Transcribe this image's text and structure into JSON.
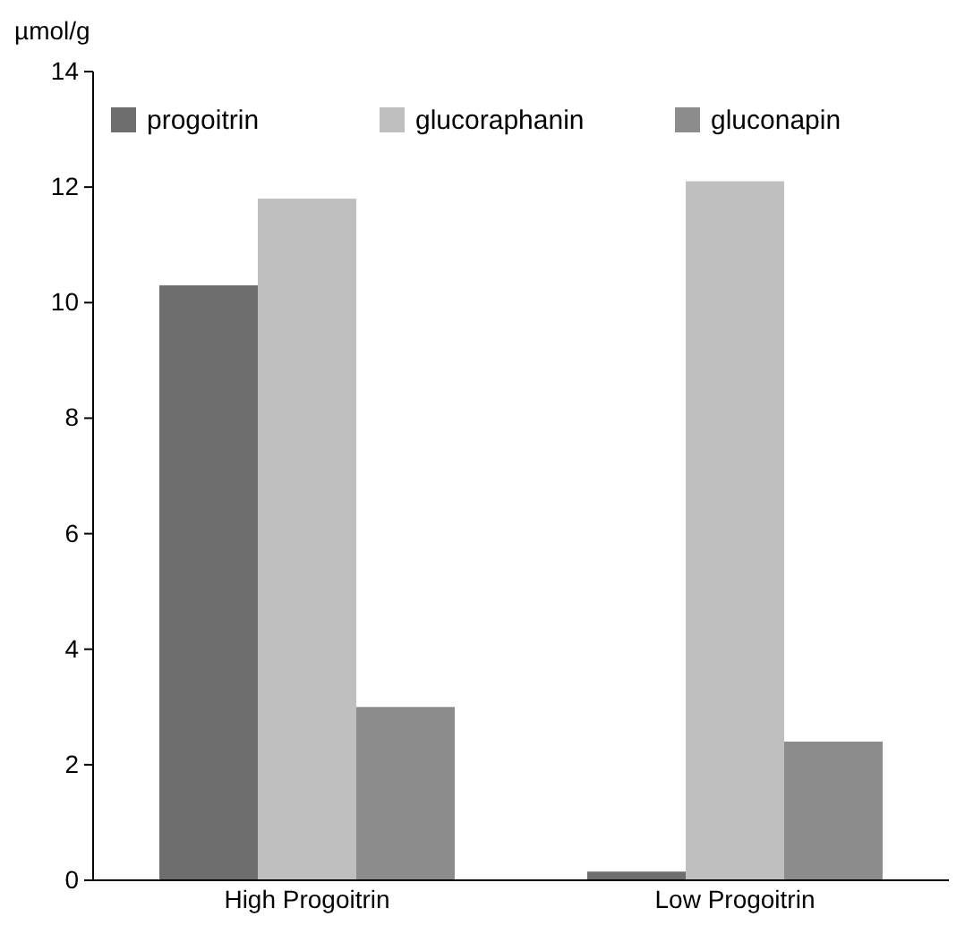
{
  "chart_data": {
    "type": "bar",
    "ylabel": "µmol/g",
    "categories": [
      "High Progoitrin",
      "Low Progoitrin"
    ],
    "series": [
      {
        "name": "progoitrin",
        "color": "#6e6e6e",
        "values": [
          10.3,
          0.15
        ]
      },
      {
        "name": "glucoraphanin",
        "color": "#bfbfbf",
        "values": [
          11.8,
          12.1
        ]
      },
      {
        "name": "gluconapin",
        "color": "#8c8c8c",
        "values": [
          3.0,
          2.4
        ]
      }
    ],
    "ylim": [
      0,
      14
    ],
    "yticks": [
      0,
      2,
      4,
      6,
      8,
      10,
      12,
      14
    ],
    "grid": false,
    "legend": "top"
  }
}
